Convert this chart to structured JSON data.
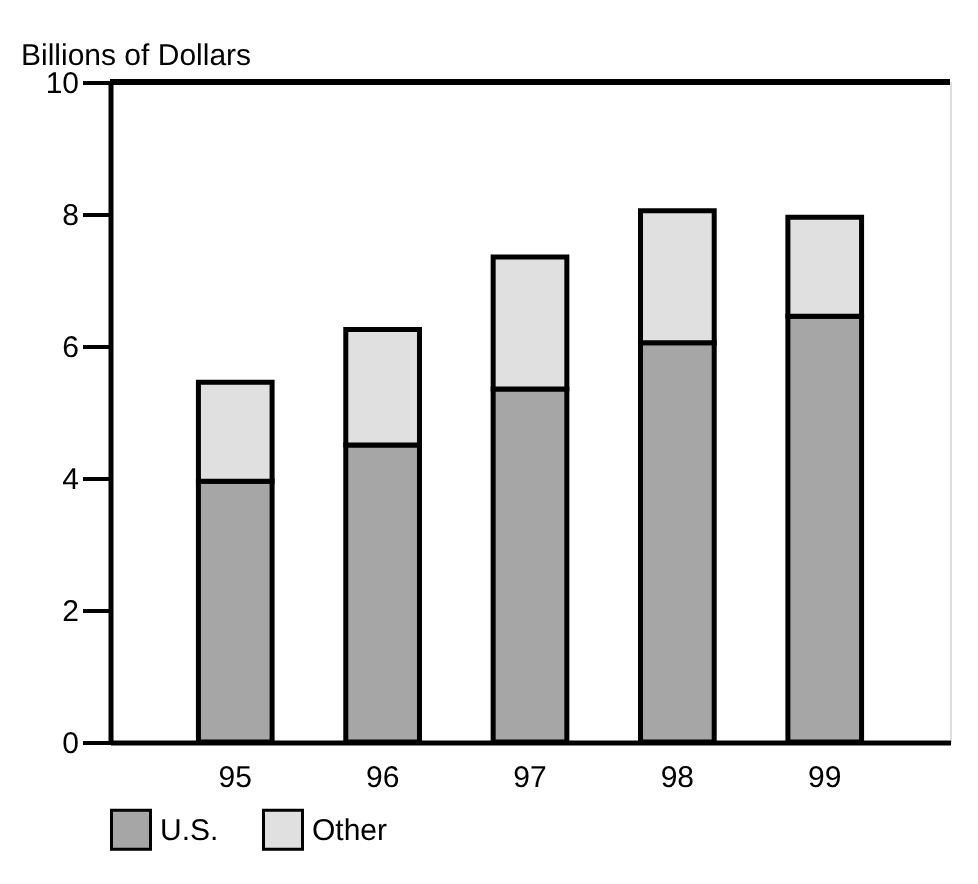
{
  "chart_data": {
    "type": "bar",
    "ylabel": "Billions of Dollars",
    "categories": [
      "95",
      "96",
      "97",
      "98",
      "99"
    ],
    "stacked": true,
    "ylim": [
      0,
      10
    ],
    "yticks": [
      0,
      2,
      4,
      6,
      8,
      10
    ],
    "grid": false,
    "legend": "bottom left",
    "series": [
      {
        "name": "U.S.",
        "color": "#a6a6a6",
        "values": [
          3.95,
          4.5,
          5.35,
          6.05,
          6.45
        ]
      },
      {
        "name": "Other",
        "color": "#e0e0e0",
        "values": [
          1.5,
          1.75,
          2.0,
          2.0,
          1.5
        ]
      }
    ]
  }
}
